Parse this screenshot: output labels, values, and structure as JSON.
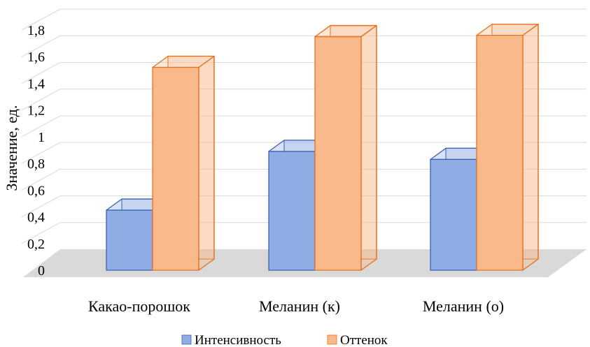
{
  "chart_data": {
    "type": "bar",
    "style": "3d-clustered-column",
    "title": "",
    "xlabel": "",
    "ylabel": "Значение, ед.",
    "ylim": [
      0,
      1.8
    ],
    "yticks": [
      "0",
      "0,2",
      "0,4",
      "0,6",
      "0,8",
      "1",
      "1,2",
      "1,4",
      "1,6",
      "1,8"
    ],
    "categories": [
      "Какао-порошок",
      "Меланин (к)",
      "Меланин (о)"
    ],
    "series": [
      {
        "name": "Интенсивность",
        "values": [
          0.45,
          0.89,
          0.83
        ],
        "color": "#8EADE5",
        "stroke": "#3A62B0"
      },
      {
        "name": "Оттенок",
        "values": [
          1.52,
          1.75,
          1.76
        ],
        "color": "#F9B98B",
        "stroke": "#E8701E"
      }
    ],
    "grid": true,
    "legend": "bottom"
  }
}
